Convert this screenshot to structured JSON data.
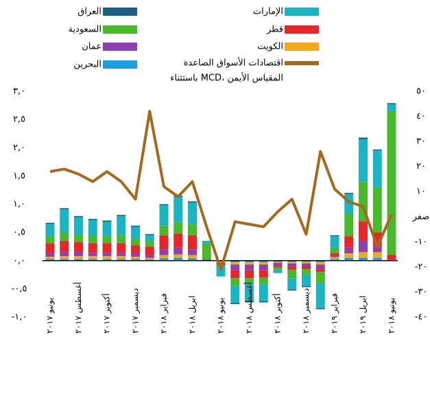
{
  "chart_data": {
    "type": "bar",
    "stacked": true,
    "categories": [
      "يونيو ٢٠١٧",
      null,
      "أغسطس ٢٠١٧",
      null,
      "أكتوبر ٢٠١٧",
      null,
      "ديسمبر ٢٠١٧",
      null,
      "فبراير ٢٠١٨",
      null,
      "ابريل ٢٠١٨",
      null,
      "يونيو ٢٠١٨",
      null,
      "أغسطس ٢٠١٨",
      null,
      "أكتوبر ٢٠١٨",
      null,
      "ديسمبر ٢٠١٨",
      null,
      "فبراير ٢٠١٩",
      null,
      "ابريل ٢٠١٩",
      null,
      "يونيو ٢٠١٨"
    ],
    "ylim": [
      -1.0,
      3.0
    ],
    "yticks": [
      {
        "value": -1.0,
        "label": "-١,٠"
      },
      {
        "value": -0.5,
        "label": "-٠,٥"
      },
      {
        "value": 0,
        "label": "٠,٠"
      },
      {
        "value": 0.5,
        "label": "٠,٥"
      },
      {
        "value": 1.0,
        "label": "١,٠"
      },
      {
        "value": 1.5,
        "label": "١,٥"
      },
      {
        "value": 2.0,
        "label": "٢,٠"
      },
      {
        "value": 2.5,
        "label": "٢,٥"
      },
      {
        "value": 3.0,
        "label": "٣,٠"
      }
    ],
    "y2lim": [
      -40,
      50
    ],
    "y2ticks": [
      {
        "value": -40,
        "label": "-٤٠"
      },
      {
        "value": -30,
        "label": "-٣٠"
      },
      {
        "value": -20,
        "label": "-٢٠"
      },
      {
        "value": -10,
        "label": "-١٠"
      },
      {
        "value": 0,
        "label": "صفر"
      },
      {
        "value": 10,
        "label": "١٠"
      },
      {
        "value": 20,
        "label": "٢٠"
      },
      {
        "value": 30,
        "label": "٣٠"
      },
      {
        "value": 40,
        "label": "٤٠"
      },
      {
        "value": 50,
        "label": "٥٠"
      }
    ],
    "grid": false,
    "series": [
      {
        "name": "البحرين",
        "color": "#1a9ee0",
        "values": [
          0.03,
          0.03,
          0.03,
          0.03,
          0.03,
          0.03,
          0.03,
          0.02,
          0.04,
          0.05,
          0.04,
          0,
          -0.02,
          -0.03,
          -0.03,
          -0.03,
          -0.02,
          -0.02,
          -0.02,
          -0.03,
          0.03,
          0.05,
          0.05,
          0.05,
          0
        ]
      },
      {
        "name": "الكويت",
        "color": "#f5a81c",
        "values": [
          0.04,
          0.05,
          0.05,
          0.05,
          0.05,
          0.05,
          0.04,
          0.03,
          0.06,
          0.06,
          0.06,
          0,
          -0.02,
          -0.04,
          -0.04,
          -0.04,
          -0.02,
          -0.03,
          -0.03,
          -0.04,
          0.03,
          0.08,
          0.1,
          0.1,
          0
        ]
      },
      {
        "name": "عمان",
        "color": "#8e3fb0",
        "values": [
          0.06,
          0.07,
          0.07,
          0.06,
          0.06,
          0.06,
          0.06,
          0.05,
          0.1,
          0.12,
          0.1,
          0.02,
          0,
          -0.1,
          -0.1,
          -0.1,
          -0.05,
          -0.06,
          -0.05,
          -0.08,
          0.02,
          0.1,
          0.2,
          0.1,
          0.02
        ]
      },
      {
        "name": "قطر",
        "color": "#e8262a",
        "values": [
          0.18,
          0.2,
          0.18,
          0.17,
          0.17,
          0.17,
          0.14,
          0.15,
          0.25,
          0.25,
          0.25,
          0,
          -0.04,
          -0.14,
          -0.14,
          -0.13,
          -0.03,
          -0.05,
          -0.05,
          -0.05,
          0.05,
          0.2,
          0.35,
          0.25,
          0.08
        ]
      },
      {
        "name": "السعودية",
        "color": "#4ab82b",
        "values": [
          0.12,
          0.15,
          0.13,
          0.13,
          0.12,
          0.14,
          0.12,
          0.1,
          0.17,
          0.2,
          0.2,
          0.28,
          0,
          -0.14,
          -0.1,
          -0.12,
          -0.05,
          -0.15,
          -0.1,
          -0.2,
          0.1,
          0.4,
          0.7,
          0.8,
          2.55
        ]
      },
      {
        "name": "الإمارات",
        "color": "#19b5c2",
        "values": [
          0.22,
          0.41,
          0.31,
          0.28,
          0.26,
          0.34,
          0.21,
          0.1,
          0.36,
          0.45,
          0.38,
          0.05,
          -0.2,
          -0.3,
          -0.31,
          -0.3,
          -0.05,
          -0.2,
          -0.2,
          -0.44,
          0.2,
          0.35,
          0.75,
          0.65,
          0.12
        ]
      },
      {
        "name": "العراق",
        "color": "#1c5f86",
        "values": [
          0.02,
          0.02,
          0.02,
          0.02,
          0.02,
          0.02,
          0.02,
          0.02,
          0.02,
          0.02,
          0.02,
          0,
          0,
          -0.02,
          -0.02,
          -0.02,
          0,
          -0.02,
          -0.02,
          -0.02,
          0.02,
          0.02,
          0.03,
          0.02,
          0.02
        ]
      },
      {
        "name": "اقتصادات الأسواق الصاعدة",
        "legend_note": "باستثناء MCD، المقياس الأيمن",
        "type": "line",
        "axis": "y2",
        "color": "#a5681c",
        "values": [
          18,
          19,
          17,
          14,
          18,
          14,
          7,
          42,
          12,
          8,
          14,
          -4,
          -21,
          -2,
          -3,
          -4,
          2,
          7,
          -7,
          26,
          11,
          6,
          4,
          -12,
          1
        ]
      }
    ]
  }
}
